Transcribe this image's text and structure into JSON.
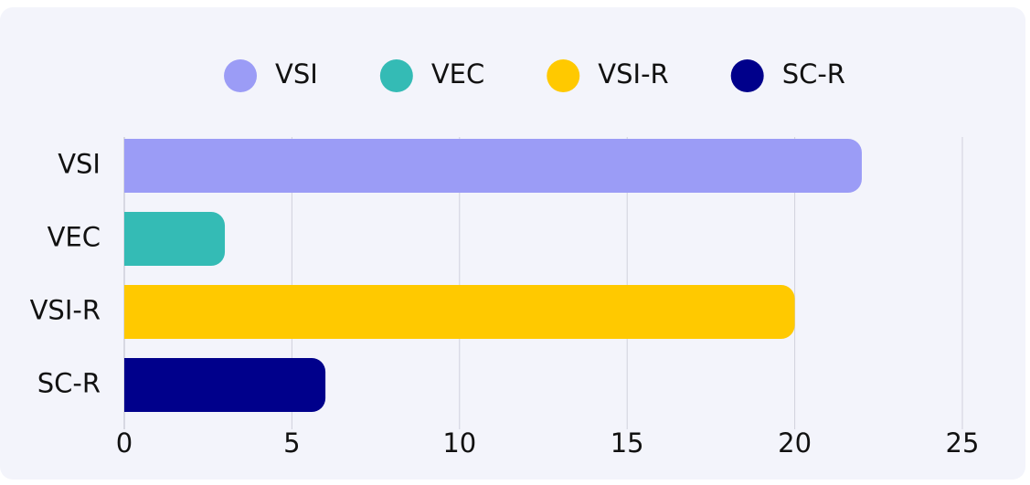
{
  "chart_data": {
    "type": "bar",
    "orientation": "horizontal",
    "categories": [
      "VSI",
      "VEC",
      "VSI-R",
      "SC-R"
    ],
    "values": [
      22,
      3,
      20,
      6
    ],
    "colors": [
      "#9b9cf6",
      "#34bbb5",
      "#ffc900",
      "#00008b"
    ],
    "xlim": [
      0,
      25
    ],
    "xticks": [
      0,
      5,
      10,
      15,
      20,
      25
    ],
    "grid": true,
    "legend": "top"
  }
}
